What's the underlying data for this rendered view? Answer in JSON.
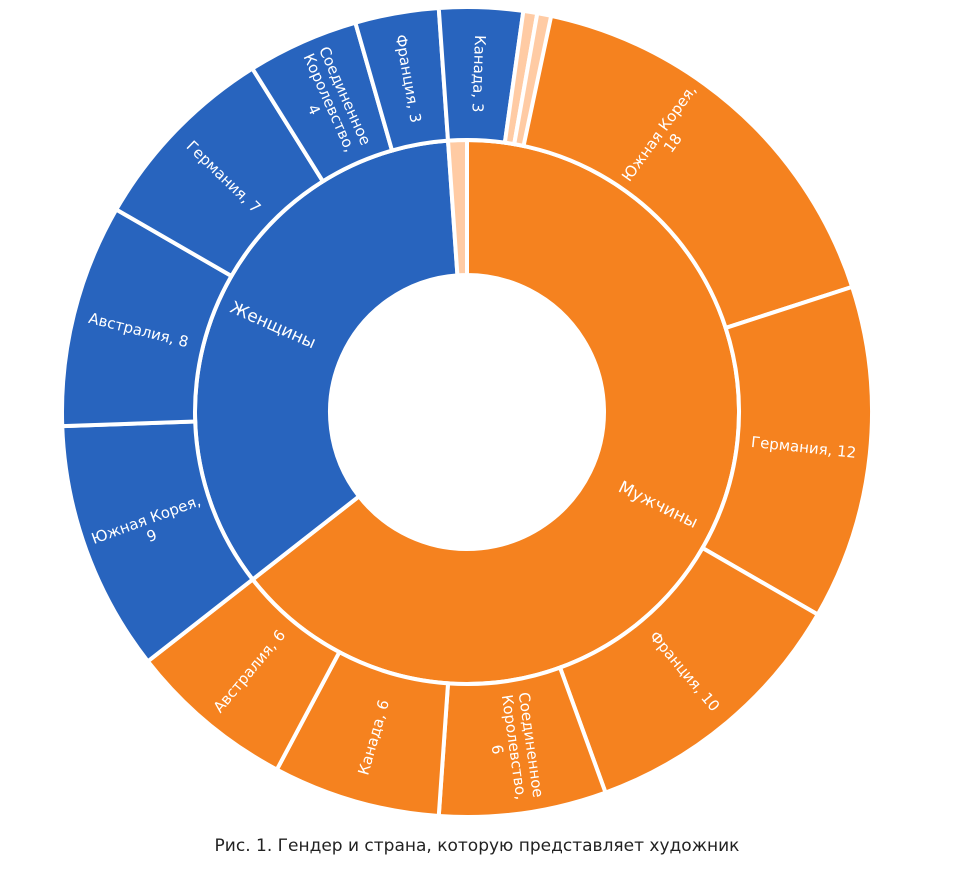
{
  "caption": "Рис. 1. Гендер и страна, которую представляет художник",
  "chart_data": {
    "type": "sunburst",
    "colors": {
      "Мужчины": "#F5821F",
      "Женщины": "#2864BE",
      "other": "#FFCBA4"
    },
    "inner": [
      {
        "name": "Мужчины",
        "value": 58,
        "label": "Мужчины"
      },
      {
        "name": "Женщины",
        "value": 31,
        "label": "Женщины"
      },
      {
        "name": "other",
        "value": 1,
        "label": ""
      }
    ],
    "outer": [
      {
        "parent": "Мужчины",
        "country": "Южная Корея",
        "value": 18,
        "label": [
          "Южная Корея,",
          "18"
        ]
      },
      {
        "parent": "Мужчины",
        "country": "Германия",
        "value": 12,
        "label": [
          "Германия, 12"
        ]
      },
      {
        "parent": "Мужчины",
        "country": "Франция",
        "value": 10,
        "label": [
          "Франция, 10"
        ]
      },
      {
        "parent": "Мужчины",
        "country": "Соединенное Королевство",
        "value": 6,
        "label": [
          "Соединенное",
          "Королевство,",
          "6"
        ]
      },
      {
        "parent": "Мужчины",
        "country": "Канада",
        "value": 6,
        "label": [
          "Канада, 6"
        ]
      },
      {
        "parent": "Мужчины",
        "country": "Австралия",
        "value": 6,
        "label": [
          "Австралия, 6"
        ]
      },
      {
        "parent": "Женщины",
        "country": "Южная Корея",
        "value": 9,
        "label": [
          "Южная Корея,",
          "9"
        ]
      },
      {
        "parent": "Женщины",
        "country": "Австралия",
        "value": 8,
        "label": [
          "Австралия, 8"
        ]
      },
      {
        "parent": "Женщины",
        "country": "Германия",
        "value": 7,
        "label": [
          "Германия, 7"
        ]
      },
      {
        "parent": "Женщины",
        "country": "Соединенное Королевство",
        "value": 4,
        "label": [
          "Соединенное",
          "Королевство,",
          "4"
        ]
      },
      {
        "parent": "Женщины",
        "country": "Франция",
        "value": 3,
        "label": [
          "Франция, 3"
        ]
      },
      {
        "parent": "Женщины",
        "country": "Канада",
        "value": 3,
        "label": [
          "Канада, 3"
        ]
      },
      {
        "parent": "other",
        "country": "",
        "value": 0.5,
        "label": []
      },
      {
        "parent": "other",
        "country": "",
        "value": 0.5,
        "label": []
      }
    ]
  }
}
